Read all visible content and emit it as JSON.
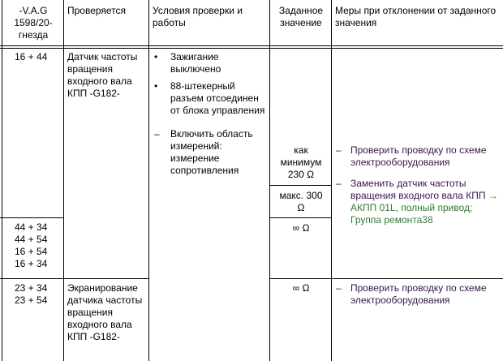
{
  "header": {
    "col1": "-V.A.G 1598/20-гнезда",
    "col2": "Проверяется",
    "col3": "Условия проверки и работы",
    "col4": "Заданное значение",
    "col5": "Меры при отклонении от заданного значения"
  },
  "rows": [
    {
      "sockets": [
        "16 + 44"
      ],
      "checked": "Датчик частоты вращения входного вала КПП -G182-"
    },
    {
      "sockets": [
        "44 + 34",
        "44 + 54",
        "16 + 54",
        "16 + 34"
      ]
    },
    {
      "sockets": [
        "23 + 34",
        "23 + 54"
      ],
      "checked": "Экранирование датчика частоты вращения входного вала КПП -G182-"
    }
  ],
  "conditions": {
    "bullets": [
      "Зажигание выключено",
      "88-штекерный разъем отсоединен от блока управления"
    ],
    "dash": "Включить область измерений: измерение сопротивления"
  },
  "values": {
    "min": "как минимум 230 Ω",
    "max": "макс. 300 Ω",
    "inf1": "∞ Ω",
    "inf2": "∞ Ω"
  },
  "measures": {
    "m1": "Проверить проводку по схеме электрооборудования",
    "m2": "Заменить датчик частоты вращения входного вала КПП",
    "m2_link": "→ АКПП 01L, полный привод; Группа ремонта38",
    "m3": "Проверить проводку по схеме электрооборудования"
  },
  "colors": {
    "measures_text": "#3a1550",
    "link": "#2e7d32"
  }
}
